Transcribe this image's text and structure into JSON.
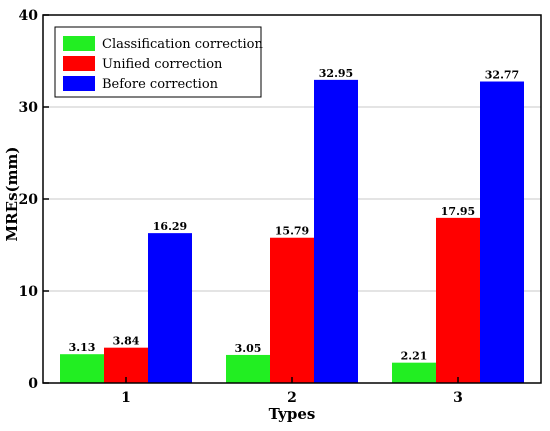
{
  "chart_data": {
    "type": "bar",
    "categories": [
      "1",
      "2",
      "3"
    ],
    "series": [
      {
        "name": "Classification correction",
        "color": "#22ee22",
        "values": [
          3.13,
          3.05,
          2.21
        ],
        "labels": [
          "3.13",
          "3.05",
          "2.21"
        ]
      },
      {
        "name": "Unified correction",
        "color": "#ff0000",
        "values": [
          3.84,
          15.79,
          17.95
        ],
        "labels": [
          "3.84",
          "15.79",
          "17.95"
        ]
      },
      {
        "name": "Before correction",
        "color": "#0000ff",
        "values": [
          16.29,
          32.95,
          32.77
        ],
        "labels": [
          "16.29",
          "32.95",
          "32.77"
        ]
      }
    ],
    "xlabel": "Types",
    "ylabel": "MREs(mm)",
    "ylim": [
      0,
      40
    ],
    "yticks": [
      "0",
      "10",
      "20",
      "30",
      "40"
    ],
    "grid": true,
    "legend_position": "top-left"
  }
}
